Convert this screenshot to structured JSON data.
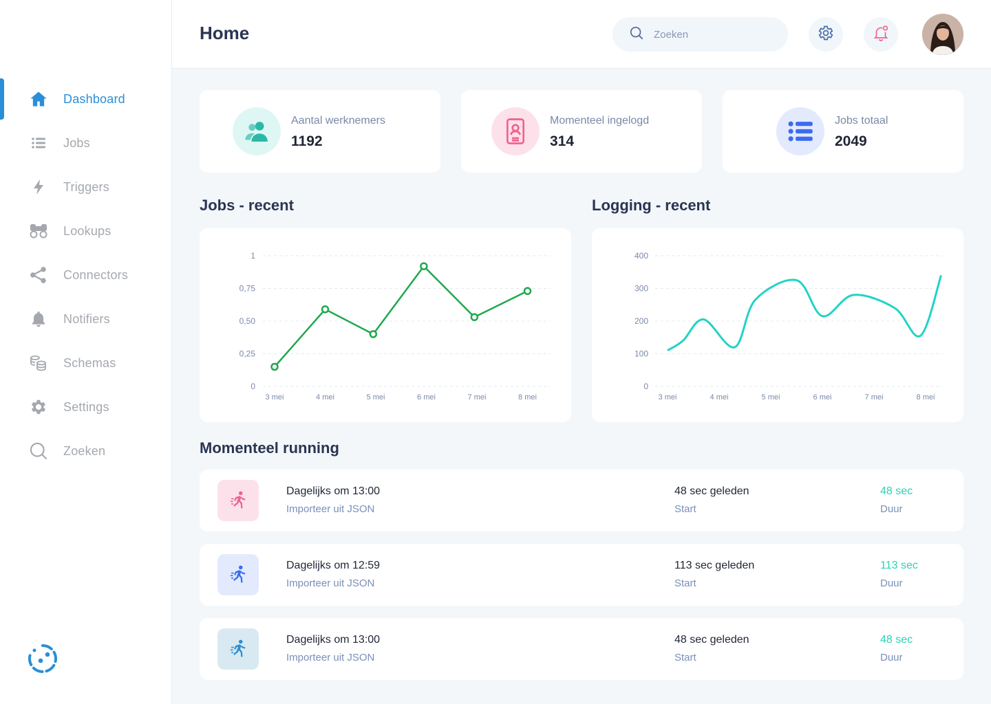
{
  "header": {
    "title": "Home",
    "search_placeholder": "Zoeken",
    "settings_icon": "gear-icon",
    "notifications_icon": "bell-icon"
  },
  "sidebar": {
    "items": [
      {
        "label": "Dashboard",
        "icon": "home-icon",
        "active": true
      },
      {
        "label": "Jobs",
        "icon": "list-icon"
      },
      {
        "label": "Triggers",
        "icon": "bolt-icon"
      },
      {
        "label": "Lookups",
        "icon": "binoculars-icon"
      },
      {
        "label": "Connectors",
        "icon": "share-icon"
      },
      {
        "label": "Notifiers",
        "icon": "bell-icon"
      },
      {
        "label": "Schemas",
        "icon": "coins-icon"
      },
      {
        "label": "Settings",
        "icon": "gear-icon"
      },
      {
        "label": "Zoeken",
        "icon": "search-icon"
      }
    ]
  },
  "stats": [
    {
      "label": "Aantal werknemers",
      "value": "1192",
      "icon": "users-icon",
      "color": "#2ab9a7",
      "bg": "#dff7f4"
    },
    {
      "label": "Momenteel ingelogd",
      "value": "314",
      "icon": "mobile-user-icon",
      "color": "#f0628d",
      "bg": "#fde1ea"
    },
    {
      "label": "Jobs totaal",
      "value": "2049",
      "icon": "list-icon",
      "color": "#3b6cf0",
      "bg": "#e3eafd"
    }
  ],
  "sections": {
    "jobs_recent": "Jobs - recent",
    "logging_recent": "Logging - recent",
    "running": "Momenteel running"
  },
  "chart_data": [
    {
      "type": "line",
      "title": "Jobs - recent",
      "categories": [
        "3 mei",
        "4 mei",
        "5 mei",
        "6 mei",
        "7 mei",
        "8 mei"
      ],
      "x": [
        0,
        1,
        1.95,
        2.95,
        3.95,
        5
      ],
      "values": [
        0.15,
        0.59,
        0.4,
        0.92,
        0.53,
        0.73
      ],
      "yticks": [
        "0",
        "0,25",
        "0,50",
        "0,75",
        "1"
      ],
      "ylim": [
        0,
        1
      ],
      "color": "#1fa84e",
      "markers": true
    },
    {
      "type": "line",
      "title": "Logging - recent",
      "categories": [
        "3 mei",
        "4 mei",
        "5 mei",
        "6 mei",
        "7 mei",
        "8 mei"
      ],
      "x": [
        0,
        0.3,
        0.7,
        1.3,
        1.7,
        2.5,
        3.0,
        3.6,
        4.4,
        4.9,
        5.3
      ],
      "values": [
        110,
        140,
        205,
        120,
        265,
        325,
        215,
        280,
        240,
        155,
        340
      ],
      "yticks": [
        "0",
        "100",
        "200",
        "300",
        "400"
      ],
      "ylim": [
        0,
        400
      ],
      "color": "#22d3c5",
      "smooth": true
    }
  ],
  "running": [
    {
      "title": "Dagelijks om 13:00",
      "subtitle": "Importeer uit JSON",
      "start": "48 sec geleden",
      "start_label": "Start",
      "duration": "48 sec",
      "duration_label": "Duur",
      "icon": "running-icon",
      "color": "#f0628d",
      "bg": "#fde1ea"
    },
    {
      "title": "Dagelijks om 12:59",
      "subtitle": "Importeer uit JSON",
      "start": "113 sec geleden",
      "start_label": "Start",
      "duration": "113 sec",
      "duration_label": "Duur",
      "icon": "running-icon",
      "color": "#3b6cf0",
      "bg": "#e3eafd"
    },
    {
      "title": "Dagelijks om 13:00",
      "subtitle": "Importeer uit JSON",
      "start": "48 sec geleden",
      "start_label": "Start",
      "duration": "48 sec",
      "duration_label": "Duur",
      "icon": "running-icon",
      "color": "#2a8fd6",
      "bg": "#d8e9f1"
    }
  ]
}
